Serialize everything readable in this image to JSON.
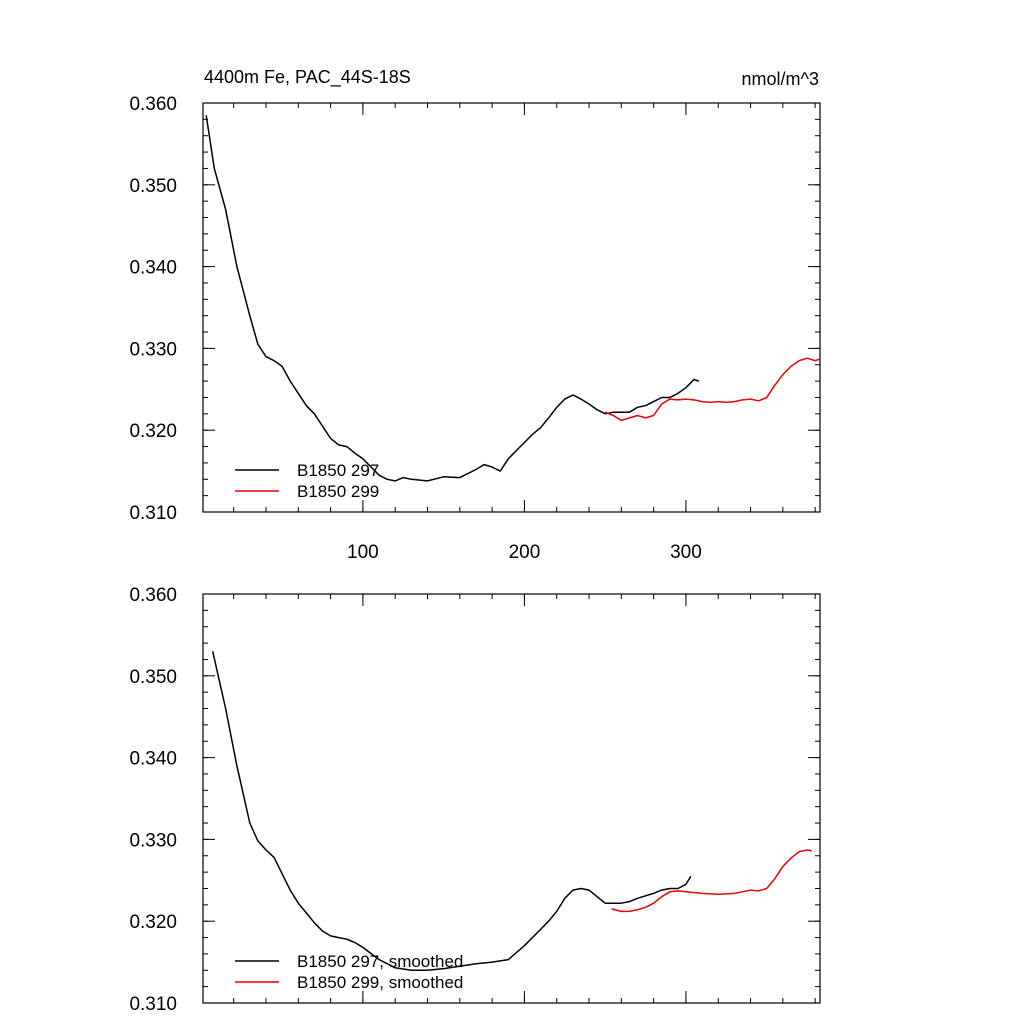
{
  "chart_data": [
    {
      "type": "line",
      "panel": "top",
      "title_left": "4400m Fe, PAC_44S-18S",
      "title_right": "nmol/m^3",
      "xlim": [
        1,
        383
      ],
      "ylim": [
        0.31,
        0.36
      ],
      "y_ticks": [
        0.31,
        0.32,
        0.33,
        0.34,
        0.35,
        0.36
      ],
      "y_tick_labels": [
        "0.310",
        "0.320",
        "0.330",
        "0.340",
        "0.350",
        "0.360"
      ],
      "x_ticks": [
        100,
        200,
        300
      ],
      "x_tick_labels": [
        "100",
        "200",
        "300"
      ],
      "legend_position": "bottom-left",
      "series": [
        {
          "name": "B1850 297",
          "color": "#000000",
          "x": [
            3,
            8,
            15,
            22,
            30,
            35,
            40,
            45,
            50,
            55,
            60,
            65,
            70,
            75,
            80,
            85,
            90,
            95,
            100,
            105,
            110,
            115,
            120,
            125,
            130,
            140,
            150,
            160,
            170,
            175,
            180,
            185,
            190,
            195,
            200,
            205,
            210,
            215,
            220,
            225,
            230,
            235,
            240,
            245,
            250,
            255,
            260,
            265,
            270,
            275,
            280,
            285,
            290,
            295,
            300,
            305,
            308
          ],
          "values": [
            0.3585,
            0.352,
            0.347,
            0.34,
            0.334,
            0.3305,
            0.329,
            0.3285,
            0.3278,
            0.326,
            0.3245,
            0.323,
            0.322,
            0.3205,
            0.319,
            0.3182,
            0.318,
            0.3172,
            0.3165,
            0.3155,
            0.3145,
            0.314,
            0.3138,
            0.3142,
            0.314,
            0.3138,
            0.3143,
            0.3142,
            0.3152,
            0.3158,
            0.3155,
            0.315,
            0.3165,
            0.3175,
            0.3185,
            0.3195,
            0.3203,
            0.3215,
            0.3228,
            0.3238,
            0.3243,
            0.3238,
            0.3232,
            0.3225,
            0.322,
            0.3222,
            0.3222,
            0.3222,
            0.3228,
            0.323,
            0.3235,
            0.324,
            0.324,
            0.3245,
            0.3252,
            0.3262,
            0.326
          ]
        },
        {
          "name": "B1850 299",
          "color": "#ee0000",
          "x": [
            250,
            255,
            260,
            265,
            270,
            275,
            280,
            285,
            290,
            295,
            300,
            305,
            310,
            315,
            320,
            325,
            330,
            335,
            340,
            345,
            350,
            355,
            360,
            365,
            370,
            375,
            380,
            383
          ],
          "values": [
            0.3222,
            0.3218,
            0.3212,
            0.3215,
            0.3218,
            0.3215,
            0.3218,
            0.3232,
            0.3238,
            0.3237,
            0.3238,
            0.3237,
            0.3235,
            0.3234,
            0.3235,
            0.3234,
            0.3235,
            0.3237,
            0.3238,
            0.3236,
            0.324,
            0.3255,
            0.3268,
            0.3278,
            0.3285,
            0.3288,
            0.3285,
            0.3287
          ]
        }
      ]
    },
    {
      "type": "line",
      "panel": "bottom",
      "xlim": [
        1,
        383
      ],
      "ylim": [
        0.31,
        0.36
      ],
      "y_ticks": [
        0.31,
        0.32,
        0.33,
        0.34,
        0.35,
        0.36
      ],
      "y_tick_labels": [
        "0.310",
        "0.320",
        "0.330",
        "0.340",
        "0.350",
        "0.360"
      ],
      "x_ticks": [
        100,
        200,
        300
      ],
      "x_tick_labels": [],
      "legend_position": "bottom-left",
      "series": [
        {
          "name": "B1850 297, smoothed",
          "color": "#000000",
          "x": [
            7,
            15,
            22,
            30,
            35,
            40,
            45,
            50,
            55,
            60,
            65,
            70,
            75,
            80,
            85,
            90,
            95,
            100,
            110,
            120,
            130,
            140,
            150,
            160,
            170,
            180,
            190,
            200,
            210,
            215,
            220,
            225,
            230,
            235,
            240,
            245,
            250,
            255,
            260,
            265,
            270,
            275,
            280,
            285,
            290,
            295,
            300,
            303
          ],
          "values": [
            0.353,
            0.346,
            0.339,
            0.332,
            0.3298,
            0.3287,
            0.3278,
            0.3258,
            0.3238,
            0.3222,
            0.321,
            0.3198,
            0.3188,
            0.3182,
            0.318,
            0.3178,
            0.3174,
            0.3168,
            0.3153,
            0.3143,
            0.314,
            0.314,
            0.3142,
            0.3145,
            0.3148,
            0.315,
            0.3153,
            0.317,
            0.319,
            0.32,
            0.3212,
            0.3228,
            0.3238,
            0.324,
            0.3238,
            0.323,
            0.3222,
            0.3222,
            0.3222,
            0.3224,
            0.3228,
            0.3231,
            0.3234,
            0.3238,
            0.324,
            0.324,
            0.3245,
            0.3255
          ]
        },
        {
          "name": "B1850 299, smoothed",
          "color": "#ee0000",
          "x": [
            254,
            260,
            265,
            270,
            275,
            280,
            285,
            290,
            295,
            300,
            310,
            320,
            330,
            335,
            340,
            345,
            350,
            355,
            360,
            365,
            370,
            375,
            378
          ],
          "values": [
            0.3215,
            0.3212,
            0.3212,
            0.3214,
            0.3217,
            0.3222,
            0.323,
            0.3236,
            0.3237,
            0.3236,
            0.3234,
            0.3233,
            0.3234,
            0.3236,
            0.3238,
            0.3237,
            0.324,
            0.3252,
            0.3267,
            0.3277,
            0.3285,
            0.3287,
            0.3286
          ]
        }
      ]
    }
  ]
}
